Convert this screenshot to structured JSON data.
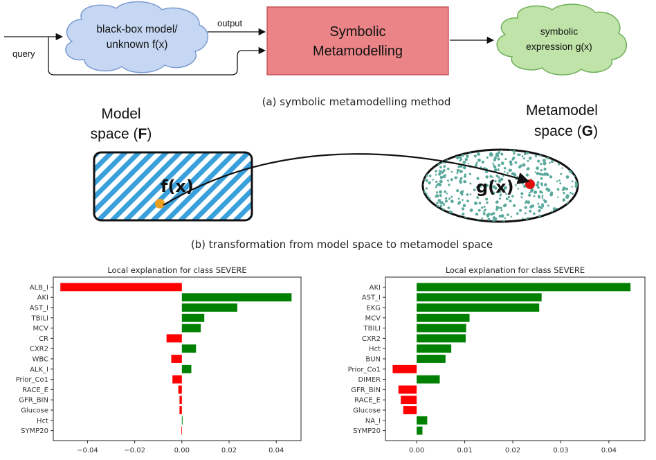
{
  "diagram_a": {
    "cloud_left": [
      "black-box model/",
      "unknown f(x)"
    ],
    "box": [
      "Symbolic",
      "Metamodelling"
    ],
    "cloud_right": [
      "symbolic",
      "expression g(x)"
    ],
    "label_output": "output",
    "label_query": "query",
    "caption": "(a) symbolic metamodelling method",
    "colors": {
      "cloud_left": "#c5d7f3",
      "box": "#ea8487",
      "cloud_right": "#bfe3a8"
    }
  },
  "diagram_b": {
    "model_space_title": [
      "Model",
      "space ("
    ],
    "model_space_bold": "F",
    "metamodel_space_title": [
      "Metamodel",
      "space ("
    ],
    "metamodel_space_bold": "G",
    "fx_label": "f(x)",
    "gx_label": "g(x)",
    "caption": "(b) transformation from model space to metamodel space",
    "colors": {
      "hatch": "#3aa0dc",
      "dots": "#5aa99c",
      "fx_point": "#f0a020",
      "gx_point": "#e01010"
    }
  },
  "chart_data": [
    {
      "type": "bar",
      "orientation": "horizontal",
      "title": "Local explanation for class SEVERE",
      "categories": [
        "ALB_I",
        "AKI",
        "AST_I",
        "TBILI",
        "MCV",
        "CR",
        "CXR2",
        "WBC",
        "ALK_I",
        "Prior_Co1",
        "RACE_E",
        "GFR_BIN",
        "Glucose",
        "Hct",
        "SYMP20"
      ],
      "values": [
        -0.0515,
        0.0465,
        0.0235,
        0.0095,
        0.008,
        -0.0065,
        0.006,
        -0.0045,
        0.004,
        -0.004,
        -0.0015,
        -0.001,
        -0.001,
        0.0003,
        -0.0002
      ],
      "xlim": [
        -0.0545,
        0.0505
      ],
      "xticks": [
        -0.04,
        -0.02,
        0.0,
        0.02,
        0.04
      ],
      "xtick_labels": [
        "−0.04",
        "−0.02",
        "0.00",
        "0.02",
        "0.04"
      ],
      "colors": {
        "positive": "#008000",
        "negative": "#ff0000"
      }
    },
    {
      "type": "bar",
      "orientation": "horizontal",
      "title": "Local explanation for class SEVERE",
      "categories": [
        "AKI",
        "AST_I",
        "EKG",
        "MCV",
        "TBILI",
        "CXR2",
        "Hct",
        "BUN",
        "Prior_Co1",
        "DIMER",
        "GFR_BIN",
        "RACE_E",
        "Glucose",
        "NA_I",
        "SYMP20"
      ],
      "values": [
        0.0445,
        0.026,
        0.0255,
        0.011,
        0.0103,
        0.0102,
        0.0072,
        0.006,
        -0.005,
        0.0048,
        -0.0038,
        -0.0033,
        -0.0028,
        0.0022,
        0.0012
      ],
      "xlim": [
        -0.0065,
        0.0475
      ],
      "xticks": [
        0.0,
        0.01,
        0.02,
        0.03,
        0.04
      ],
      "xtick_labels": [
        "0.00",
        "0.01",
        "0.02",
        "0.03",
        "0.04"
      ],
      "colors": {
        "positive": "#008000",
        "negative": "#ff0000"
      }
    }
  ]
}
